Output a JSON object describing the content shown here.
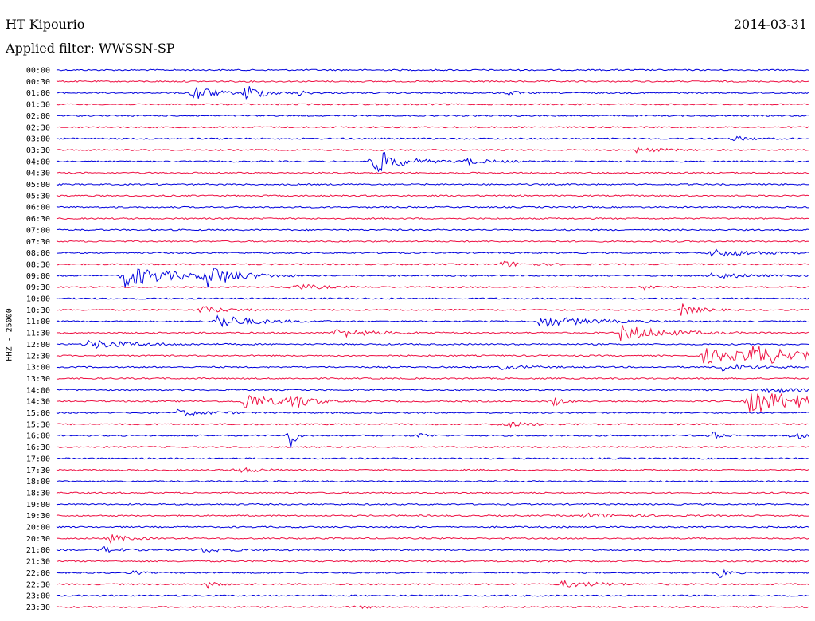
{
  "header": {
    "station": "HT Kipourio",
    "date": "2014-03-31",
    "filter": "Applied filter: WWSSN-SP"
  },
  "chart_data": {
    "type": "line",
    "subtype": "helicorder",
    "ylabel": "HHZ - 25000",
    "row_labels": [
      "00:00",
      "00:30",
      "01:00",
      "01:30",
      "02:00",
      "02:30",
      "03:00",
      "03:30",
      "04:00",
      "04:30",
      "05:00",
      "05:30",
      "06:00",
      "06:30",
      "07:00",
      "07:30",
      "08:00",
      "08:30",
      "09:00",
      "09:30",
      "10:00",
      "10:30",
      "11:00",
      "11:30",
      "12:00",
      "12:30",
      "13:00",
      "13:30",
      "14:00",
      "14:30",
      "15:00",
      "15:30",
      "16:00",
      "16:30",
      "17:00",
      "17:30",
      "18:00",
      "18:30",
      "19:00",
      "19:30",
      "20:00",
      "20:30",
      "21:00",
      "21:30",
      "22:00",
      "22:30",
      "23:00",
      "23:30"
    ],
    "colors": [
      "#0000dd",
      "#ee1144"
    ],
    "events": [
      {
        "row": 2,
        "x": 0.18,
        "amp": 14,
        "dur": 0.02
      },
      {
        "row": 2,
        "x": 0.25,
        "amp": 12,
        "dur": 0.02
      },
      {
        "row": 2,
        "x": 0.32,
        "amp": 4,
        "dur": 0.01
      },
      {
        "row": 2,
        "x": 0.6,
        "amp": 4,
        "dur": 0.01
      },
      {
        "row": 6,
        "x": 0.9,
        "amp": 3,
        "dur": 0.02
      },
      {
        "row": 7,
        "x": 0.77,
        "amp": 3,
        "dur": 0.03
      },
      {
        "row": 8,
        "x": 0.42,
        "amp": 18,
        "dur": 0.03
      },
      {
        "row": 8,
        "x": 0.54,
        "amp": 4,
        "dur": 0.03
      },
      {
        "row": 16,
        "x": 0.87,
        "amp": 5,
        "dur": 0.05
      },
      {
        "row": 17,
        "x": 0.59,
        "amp": 4,
        "dur": 0.03
      },
      {
        "row": 18,
        "x": 0.09,
        "amp": 14,
        "dur": 0.06
      },
      {
        "row": 18,
        "x": 0.2,
        "amp": 14,
        "dur": 0.03
      },
      {
        "row": 18,
        "x": 0.87,
        "amp": 4,
        "dur": 0.04
      },
      {
        "row": 19,
        "x": 0.31,
        "amp": 5,
        "dur": 0.03
      },
      {
        "row": 19,
        "x": 0.78,
        "amp": 3,
        "dur": 0.02
      },
      {
        "row": 21,
        "x": 0.19,
        "amp": 5,
        "dur": 0.03
      },
      {
        "row": 21,
        "x": 0.83,
        "amp": 8,
        "dur": 0.02
      },
      {
        "row": 22,
        "x": 0.21,
        "amp": 10,
        "dur": 0.04
      },
      {
        "row": 22,
        "x": 0.64,
        "amp": 7,
        "dur": 0.06
      },
      {
        "row": 23,
        "x": 0.37,
        "amp": 6,
        "dur": 0.04
      },
      {
        "row": 23,
        "x": 0.75,
        "amp": 10,
        "dur": 0.05
      },
      {
        "row": 24,
        "x": 0.04,
        "amp": 6,
        "dur": 0.05
      },
      {
        "row": 25,
        "x": 0.86,
        "amp": 10,
        "dur": 0.06
      },
      {
        "row": 25,
        "x": 0.92,
        "amp": 12,
        "dur": 0.05
      },
      {
        "row": 26,
        "x": 0.59,
        "amp": 3,
        "dur": 0.03
      },
      {
        "row": 26,
        "x": 0.88,
        "amp": 5,
        "dur": 0.04
      },
      {
        "row": 28,
        "x": 0.94,
        "amp": 4,
        "dur": 0.03
      },
      {
        "row": 29,
        "x": 0.25,
        "amp": 12,
        "dur": 0.03
      },
      {
        "row": 29,
        "x": 0.31,
        "amp": 12,
        "dur": 0.02
      },
      {
        "row": 29,
        "x": 0.66,
        "amp": 7,
        "dur": 0.01
      },
      {
        "row": 29,
        "x": 0.92,
        "amp": 14,
        "dur": 0.1
      },
      {
        "row": 30,
        "x": 0.16,
        "amp": 4,
        "dur": 0.04
      },
      {
        "row": 31,
        "x": 0.59,
        "amp": 4,
        "dur": 0.03
      },
      {
        "row": 32,
        "x": 0.48,
        "amp": 4,
        "dur": 0.01
      },
      {
        "row": 32,
        "x": 0.87,
        "amp": 7,
        "dur": 0.01
      },
      {
        "row": 32,
        "x": 0.98,
        "amp": 7,
        "dur": 0.01
      },
      {
        "row": 32,
        "x": 0.31,
        "amp": 30,
        "dur": 0.005
      },
      {
        "row": 35,
        "x": 0.24,
        "amp": 5,
        "dur": 0.02
      },
      {
        "row": 39,
        "x": 0.7,
        "amp": 3,
        "dur": 0.05
      },
      {
        "row": 41,
        "x": 0.07,
        "amp": 6,
        "dur": 0.02
      },
      {
        "row": 42,
        "x": 0.06,
        "amp": 4,
        "dur": 0.02
      },
      {
        "row": 42,
        "x": 0.19,
        "amp": 3,
        "dur": 0.04
      },
      {
        "row": 44,
        "x": 0.1,
        "amp": 3,
        "dur": 0.01
      },
      {
        "row": 44,
        "x": 0.88,
        "amp": 8,
        "dur": 0.01
      },
      {
        "row": 45,
        "x": 0.2,
        "amp": 5,
        "dur": 0.01
      },
      {
        "row": 45,
        "x": 0.67,
        "amp": 4,
        "dur": 0.05
      },
      {
        "row": 47,
        "x": 0.4,
        "amp": 3,
        "dur": 0.01
      }
    ]
  }
}
